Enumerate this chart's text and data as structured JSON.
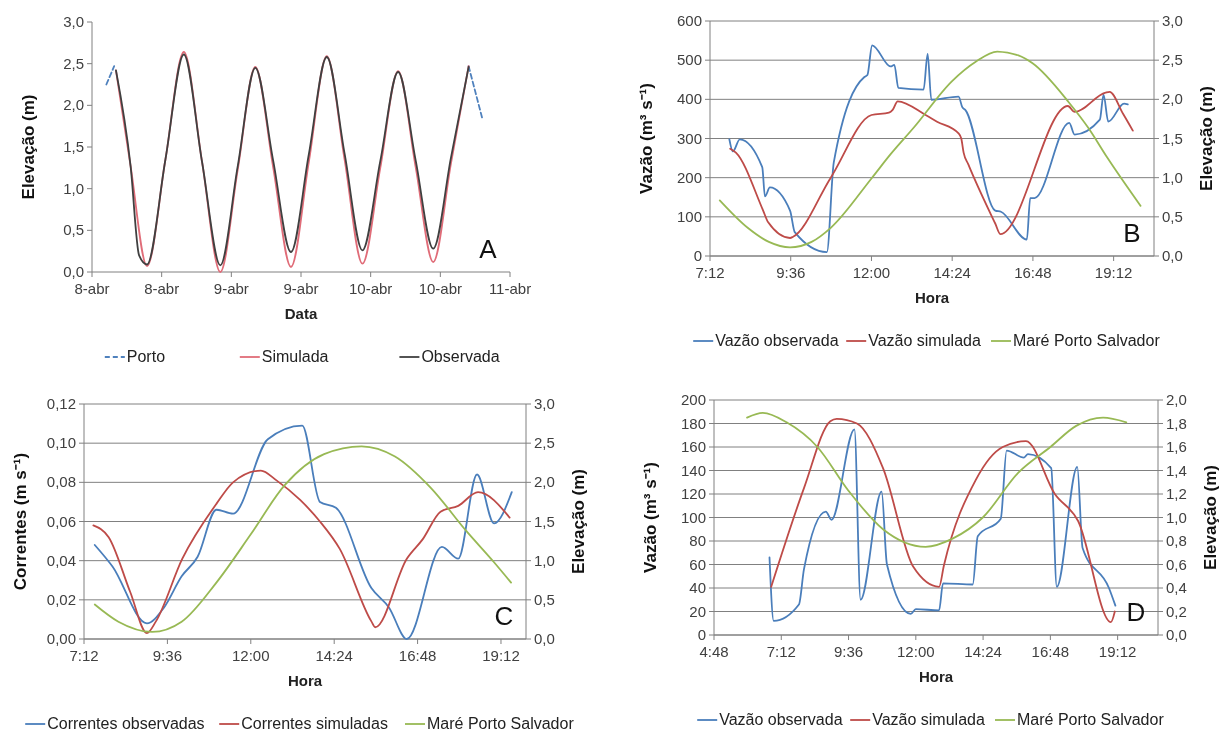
{
  "chart_data": [
    {
      "type": "line",
      "xlabel": "Data",
      "ylabel": "Elevação (m)",
      "xlim": [
        8,
        11
      ],
      "xticks": [
        {
          "value": 8,
          "label": "8-abr"
        },
        {
          "value": 8.5,
          "label": "8-abr"
        },
        {
          "value": 9,
          "label": "9-abr"
        },
        {
          "value": 9.5,
          "label": "9-abr"
        },
        {
          "value": 10,
          "label": "10-abr"
        },
        {
          "value": 10.5,
          "label": "10-abr"
        },
        {
          "value": 11,
          "label": "11-abr"
        }
      ],
      "ylim": [
        0,
        3
      ],
      "yticks": [
        {
          "value": 0,
          "label": "0,0"
        },
        {
          "value": 0.5,
          "label": "0,5"
        },
        {
          "value": 1,
          "label": "1,0"
        },
        {
          "value": 1.5,
          "label": "1,5"
        },
        {
          "value": 2,
          "label": "2,0"
        },
        {
          "value": 2.5,
          "label": "2,5"
        },
        {
          "value": 3,
          "label": "3,0"
        }
      ],
      "grid": false,
      "legend": "bottom",
      "annotations": [
        "A"
      ],
      "series": [
        {
          "name": "Porto",
          "color": "#4f81bd",
          "line_style": "dashed",
          "x": [
            8.103,
            8.159,
            9.4,
            10.703,
            10.8
          ],
          "values": [
            2.25,
            2.47,
            null,
            2.47,
            1.85
          ]
        },
        {
          "name": "Simulada",
          "color": "#e06c78",
          "x": [
            8.172,
            8.277,
            8.395,
            8.527,
            8.659,
            8.79,
            8.921,
            9.046,
            9.172,
            9.3,
            9.428,
            9.556,
            9.685,
            9.813,
            9.941,
            10.069,
            10.197,
            10.323,
            10.449,
            10.576,
            10.703
          ],
          "values": [
            2.42,
            1.27,
            0.07,
            1.35,
            2.64,
            1.32,
            0.0,
            1.23,
            2.46,
            1.26,
            0.06,
            1.32,
            2.59,
            1.35,
            0.1,
            1.25,
            2.41,
            1.26,
            0.12,
            1.3,
            2.47
          ]
        },
        {
          "name": "Observada",
          "color": "#404040",
          "x": [
            8.172,
            8.277,
            8.338,
            8.395,
            8.527,
            8.659,
            8.79,
            8.921,
            9.046,
            9.172,
            9.3,
            9.428,
            9.556,
            9.685,
            9.813,
            9.941,
            10.069,
            10.197,
            10.323,
            10.449,
            10.576,
            10.703
          ],
          "values": [
            2.42,
            1.27,
            0.2,
            0.09,
            1.35,
            2.61,
            1.32,
            0.08,
            1.27,
            2.45,
            1.34,
            0.24,
            1.41,
            2.58,
            1.42,
            0.26,
            1.33,
            2.4,
            1.34,
            0.28,
            1.37,
            2.46
          ]
        }
      ]
    },
    {
      "type": "line",
      "xlabel": "Hora",
      "ylabel": "Vazão (m³ s⁻¹)",
      "y2label": "Elevação (m)",
      "xlim": [
        7.2,
        20.4
      ],
      "xticks": [
        {
          "value": 7.2,
          "label": "7:12"
        },
        {
          "value": 9.6,
          "label": "9:36"
        },
        {
          "value": 12,
          "label": "12:00"
        },
        {
          "value": 14.4,
          "label": "14:24"
        },
        {
          "value": 16.8,
          "label": "16:48"
        },
        {
          "value": 19.2,
          "label": "19:12"
        }
      ],
      "ylim": [
        0,
        600
      ],
      "yticks": [
        0,
        100,
        200,
        300,
        400,
        500,
        600
      ],
      "y2lim": [
        0,
        3
      ],
      "y2ticks": [
        {
          "value": 0,
          "label": "0,0"
        },
        {
          "value": 0.5,
          "label": "0,5"
        },
        {
          "value": 1,
          "label": "1,0"
        },
        {
          "value": 1.5,
          "label": "1,5"
        },
        {
          "value": 2,
          "label": "2,0"
        },
        {
          "value": 2.5,
          "label": "2,5"
        },
        {
          "value": 3,
          "label": "3,0"
        }
      ],
      "grid": "y",
      "legend": "bottom",
      "annotations": [
        "B"
      ],
      "series": [
        {
          "name": "Vazão observada",
          "color": "#4a7ebb",
          "x": [
            7.775,
            7.88,
            8.086,
            8.753,
            8.834,
            8.98,
            9.58,
            9.72,
            10.675,
            10.88,
            11.79,
            11.88,
            12.02,
            12.57,
            12.68,
            12.8,
            13.55,
            13.67,
            13.78,
            14.59,
            14.7,
            14.79,
            15.68,
            15.85,
            16.62,
            16.72,
            16.85,
            17.88,
            18.04,
            18.79,
            18.9,
            19.04,
            19.51,
            19.62
          ],
          "values": [
            298,
            267,
            298,
            227,
            152,
            175,
            116,
            61,
            10,
            239,
            457,
            462,
            538,
            484,
            488,
            429,
            425,
            516,
            399,
            407,
            380,
            373,
            116,
            113,
            42,
            148,
            148,
            340,
            310,
            348,
            412,
            343,
            389,
            387
          ]
        },
        {
          "name": "Vazão simulada",
          "color": "#be4b48",
          "x": [
            7.8,
            7.97,
            8.78,
            8.93,
            9.58,
            9.67,
            10.79,
            12.0,
            12.52,
            12.63,
            12.78,
            13.61,
            13.95,
            14.59,
            14.67,
            14.74,
            14.88,
            15.68,
            15.83,
            17.84,
            18.04,
            18.96,
            19.08,
            19.48,
            19.77
          ],
          "values": [
            274,
            264,
            116,
            86,
            46,
            49,
            200,
            360,
            366,
            373,
            395,
            360,
            343,
            313,
            300,
            264,
            234,
            83,
            56,
            383,
            368,
            417,
            419,
            363,
            320
          ]
        },
        {
          "name": "Maré Porto Salvador",
          "color": "#98b954",
          "axis": "y2",
          "x": [
            7.49,
            8.32,
            8.95,
            9.58,
            10.22,
            10.79,
            12.0,
            12.57,
            13.26,
            14.39,
            15.1,
            15.74,
            16.37,
            16.79,
            17.87,
            18.44,
            19.02,
            20.0
          ],
          "values": [
            0.71,
            0.36,
            0.18,
            0.11,
            0.18,
            0.36,
            0.99,
            1.3,
            1.64,
            2.23,
            2.48,
            2.61,
            2.56,
            2.46,
            1.96,
            1.64,
            1.25,
            0.64
          ]
        }
      ]
    },
    {
      "type": "line",
      "xlabel": "Hora",
      "ylabel": "Correntes (m s⁻¹)",
      "y2label": "Elevação (m)",
      "xlim": [
        7.2,
        19.92
      ],
      "xticks": [
        {
          "value": 7.2,
          "label": "7:12"
        },
        {
          "value": 9.6,
          "label": "9:36"
        },
        {
          "value": 12,
          "label": "12:00"
        },
        {
          "value": 14.4,
          "label": "14:24"
        },
        {
          "value": 16.8,
          "label": "16:48"
        },
        {
          "value": 19.2,
          "label": "19:12"
        }
      ],
      "ylim": [
        0,
        0.12
      ],
      "yticks": [
        {
          "value": 0,
          "label": "0,00"
        },
        {
          "value": 0.02,
          "label": "0,02"
        },
        {
          "value": 0.04,
          "label": "0,04"
        },
        {
          "value": 0.06,
          "label": "0,06"
        },
        {
          "value": 0.08,
          "label": "0,08"
        },
        {
          "value": 0.1,
          "label": "0,10"
        },
        {
          "value": 0.12,
          "label": "0,12"
        }
      ],
      "y2lim": [
        0,
        3
      ],
      "y2ticks": [
        {
          "value": 0,
          "label": "0,0"
        },
        {
          "value": 0.5,
          "label": "0,5"
        },
        {
          "value": 1,
          "label": "1,0"
        },
        {
          "value": 1.5,
          "label": "1,5"
        },
        {
          "value": 2,
          "label": "2,0"
        },
        {
          "value": 2.5,
          "label": "2,5"
        },
        {
          "value": 3,
          "label": "3,0"
        }
      ],
      "grid": "y",
      "legend": "bottom",
      "annotations": [
        "C"
      ],
      "series": [
        {
          "name": "Correntes observadas",
          "color": "#4a7ebb",
          "x": [
            7.51,
            8.02,
            9.01,
            9.5,
            10.01,
            10.47,
            11.01,
            11.49,
            12.49,
            13.48,
            13.99,
            14.45,
            15.47,
            15.98,
            16.49,
            17.5,
            17.97,
            18.51,
            19.0,
            19.51
          ],
          "values": [
            0.048,
            0.037,
            0.008,
            0.016,
            0.032,
            0.042,
            0.066,
            0.064,
            0.102,
            0.109,
            0.07,
            0.067,
            0.026,
            0.016,
            0.0,
            0.047,
            0.041,
            0.084,
            0.059,
            0.075
          ]
        },
        {
          "name": "Correntes simuladas",
          "color": "#be4b48",
          "x": [
            7.47,
            7.91,
            8.53,
            9.01,
            9.27,
            10.03,
            11.01,
            11.49,
            12.29,
            12.74,
            13.42,
            13.99,
            14.56,
            15.47,
            15.58,
            16.49,
            16.95,
            17.46,
            17.97,
            18.54,
            19.45
          ],
          "values": [
            0.058,
            0.052,
            0.024,
            0.003,
            0.009,
            0.041,
            0.069,
            0.08,
            0.086,
            0.081,
            0.071,
            0.06,
            0.046,
            0.009,
            0.006,
            0.041,
            0.051,
            0.065,
            0.068,
            0.075,
            0.062
          ]
        },
        {
          "name": "Maré Porto Salvador",
          "color": "#98b954",
          "axis": "y2",
          "x": [
            7.51,
            8.19,
            9.16,
            10.01,
            11.01,
            11.99,
            12.97,
            14.11,
            15.19,
            16.15,
            17.18,
            18.2,
            19.0,
            19.49
          ],
          "values": [
            0.44,
            0.22,
            0.09,
            0.22,
            0.72,
            1.33,
            1.96,
            2.36,
            2.46,
            2.33,
            1.93,
            1.38,
            0.98,
            0.72
          ]
        }
      ]
    },
    {
      "type": "line",
      "xlabel": "Hora",
      "ylabel": "Vazão (m³ s⁻¹)",
      "y2label": "Elevação (m)",
      "xlim": [
        4.8,
        20.64
      ],
      "xticks": [
        {
          "value": 4.8,
          "label": "4:48"
        },
        {
          "value": 7.2,
          "label": "7:12"
        },
        {
          "value": 9.6,
          "label": "9:36"
        },
        {
          "value": 12,
          "label": "12:00"
        },
        {
          "value": 14.4,
          "label": "14:24"
        },
        {
          "value": 16.8,
          "label": "16:48"
        },
        {
          "value": 19.2,
          "label": "19:12"
        }
      ],
      "ylim": [
        0,
        200
      ],
      "yticks": [
        0,
        20,
        40,
        60,
        80,
        100,
        120,
        140,
        160,
        180,
        200
      ],
      "y2lim": [
        0,
        2
      ],
      "y2ticks": [
        {
          "value": 0,
          "label": "0,0"
        },
        {
          "value": 0.2,
          "label": "0,2"
        },
        {
          "value": 0.4,
          "label": "0,4"
        },
        {
          "value": 0.6,
          "label": "0,6"
        },
        {
          "value": 0.8,
          "label": "0,8"
        },
        {
          "value": 1,
          "label": "1,0"
        },
        {
          "value": 1.2,
          "label": "1,2"
        },
        {
          "value": 1.4,
          "label": "1,4"
        },
        {
          "value": 1.6,
          "label": "1,6"
        },
        {
          "value": 1.8,
          "label": "1,8"
        },
        {
          "value": 2,
          "label": "2,0"
        }
      ],
      "grid": "y",
      "legend": "bottom",
      "annotations": [
        "D"
      ],
      "series": [
        {
          "name": "Vazão observada",
          "color": "#4a7ebb",
          "x": [
            6.78,
            6.93,
            7.83,
            8.01,
            8.79,
            8.99,
            9.81,
            10.03,
            10.78,
            10.97,
            11.82,
            12.0,
            12.83,
            12.97,
            14.03,
            14.21,
            15.03,
            15.24,
            15.86,
            16.0,
            16.83,
            17.03,
            17.76,
            17.95,
            18.89,
            19.12
          ],
          "values": [
            66,
            12,
            26,
            56,
            105,
            98,
            175,
            30,
            122,
            60,
            18,
            22,
            21,
            44,
            43,
            84,
            99,
            157,
            151,
            154,
            142,
            41,
            143,
            74,
            40,
            25
          ]
        },
        {
          "name": "Vazão simulada",
          "color": "#be4b48",
          "x": [
            6.84,
            8.01,
            8.95,
            9.18,
            9.9,
            10.83,
            11.91,
            12.83,
            13.0,
            14.14,
            15.1,
            15.93,
            16.96,
            17.79,
            18.96,
            19.1
          ],
          "values": [
            41,
            125,
            182,
            184,
            180,
            142,
            58,
            41,
            59,
            132,
            160,
            165,
            120,
            97,
            11,
            20
          ]
        },
        {
          "name": "Maré Porto Salvador",
          "color": "#98b954",
          "axis": "y2",
          "x": [
            5.98,
            6.54,
            7.39,
            8.49,
            9.59,
            10.83,
            12.35,
            13.31,
            14.39,
            15.65,
            16.8,
            17.72,
            18.68,
            19.51
          ],
          "values": [
            1.85,
            1.89,
            1.81,
            1.6,
            1.23,
            0.9,
            0.75,
            0.82,
            1.0,
            1.38,
            1.6,
            1.78,
            1.85,
            1.81
          ]
        }
      ]
    }
  ]
}
